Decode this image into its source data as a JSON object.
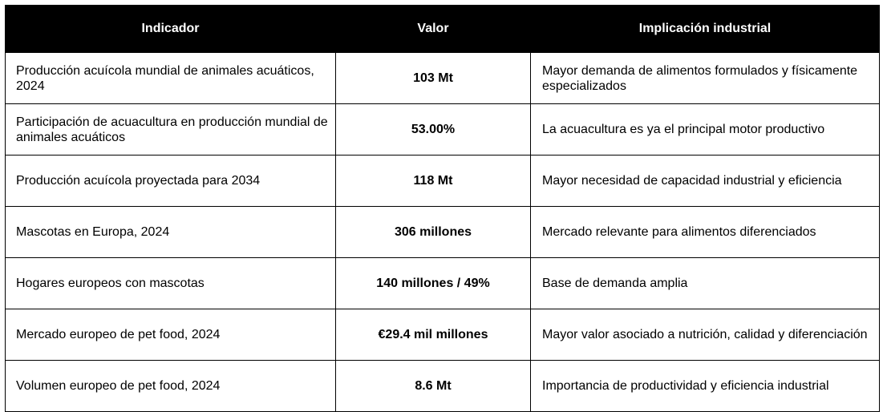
{
  "table": {
    "headers": [
      "Indicador",
      "Valor",
      "Implicación industrial"
    ],
    "rows": [
      {
        "indicador": "Producción acuícola mundial de animales acuáticos, 2024",
        "valor": "103 Mt",
        "implicacion": "Mayor demanda de alimentos formulados y físicamente especializados"
      },
      {
        "indicador": "Participación de acuacultura en producción mundial de animales acuáticos",
        "valor": "53.00%",
        "implicacion": "La acuacultura es ya el principal motor productivo"
      },
      {
        "indicador": "Producción acuícola proyectada para 2034",
        "valor": "118 Mt",
        "implicacion": "Mayor necesidad de capacidad industrial y eficiencia"
      },
      {
        "indicador": "Mascotas en Europa, 2024",
        "valor": "306 millones",
        "implicacion": "Mercado relevante para alimentos diferenciados"
      },
      {
        "indicador": "Hogares europeos con mascotas",
        "valor": "140 millones / 49%",
        "implicacion": "Base de demanda amplia"
      },
      {
        "indicador": "Mercado europeo de pet food, 2024",
        "valor": "€29.4 mil millones",
        "implicacion": "Mayor valor asociado a nutrición, calidad y diferenciación"
      },
      {
        "indicador": "Volumen europeo de pet food, 2024",
        "valor": "8.6 Mt",
        "implicacion": "Importancia de productividad y eficiencia industrial"
      }
    ]
  }
}
